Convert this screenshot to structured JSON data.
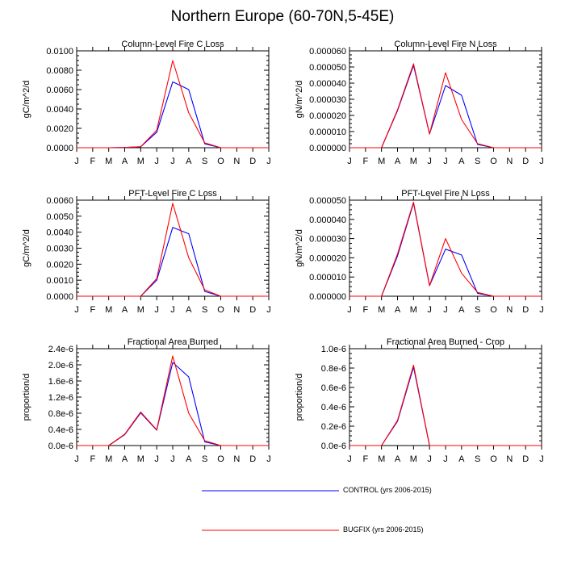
{
  "title": "Northern Europe (60-70N,5-45E)",
  "colors": {
    "control": "#0000ff",
    "bugfix": "#ff0000"
  },
  "legend": [
    {
      "key": "control",
      "label": "CONTROL (yrs 2006-2015)"
    },
    {
      "key": "bugfix",
      "label": "BUGFIX (yrs 2006-2015)"
    }
  ],
  "chart_data": [
    {
      "type": "line",
      "title": "Column-Level Fire C Loss",
      "ylabel": "gC/m^2/d",
      "categories": [
        "J",
        "F",
        "M",
        "A",
        "M",
        "J",
        "J",
        "A",
        "S",
        "O",
        "N",
        "D",
        "J"
      ],
      "ylim": [
        0,
        0.01
      ],
      "yticks": [
        0,
        0.002,
        0.004,
        0.006,
        0.008,
        0.01
      ],
      "ytick_labels": [
        "0.0000",
        "0.0020",
        "0.0040",
        "0.0060",
        "0.0080",
        "0.0100"
      ],
      "series": [
        {
          "name": "CONTROL (yrs 2006-2015)",
          "key": "control",
          "values": [
            0,
            0,
            0,
            3e-05,
            0.0001,
            0.0016,
            0.0068,
            0.006,
            0.0004,
            0,
            0,
            0,
            0
          ]
        },
        {
          "name": "BUGFIX (yrs 2006-2015)",
          "key": "bugfix",
          "values": [
            0,
            0,
            0,
            3e-05,
            0.0001,
            0.0018,
            0.009,
            0.0036,
            0.0005,
            0,
            0,
            0,
            0
          ]
        }
      ]
    },
    {
      "type": "line",
      "title": "Column-Level Fire N Loss",
      "ylabel": "gN/m^2/d",
      "categories": [
        "J",
        "F",
        "M",
        "A",
        "M",
        "J",
        "J",
        "A",
        "S",
        "O",
        "N",
        "D",
        "J"
      ],
      "ylim": [
        0,
        6e-05
      ],
      "yticks": [
        0,
        1e-05,
        2e-05,
        3e-05,
        4e-05,
        5e-05,
        6e-05
      ],
      "ytick_labels": [
        "0.000000",
        "0.000010",
        "0.000020",
        "0.000030",
        "0.000040",
        "0.000050",
        "0.000060"
      ],
      "series": [
        {
          "name": "CONTROL (yrs 2006-2015)",
          "key": "control",
          "values": [
            0,
            0,
            0,
            2.3e-05,
            5.1e-05,
            8.5e-06,
            3.85e-05,
            3.25e-05,
            2e-06,
            0,
            0,
            0,
            0
          ]
        },
        {
          "name": "BUGFIX (yrs 2006-2015)",
          "key": "bugfix",
          "values": [
            0,
            0,
            0,
            2.35e-05,
            5.2e-05,
            8.5e-06,
            4.65e-05,
            1.75e-05,
            2.5e-06,
            0,
            0,
            0,
            0
          ]
        }
      ]
    },
    {
      "type": "line",
      "title": "PFT-Level Fire C Loss",
      "ylabel": "gC/m^2/d",
      "categories": [
        "J",
        "F",
        "M",
        "A",
        "M",
        "J",
        "J",
        "A",
        "S",
        "O",
        "N",
        "D",
        "J"
      ],
      "ylim": [
        0,
        0.006
      ],
      "yticks": [
        0,
        0.001,
        0.002,
        0.003,
        0.004,
        0.005,
        0.006
      ],
      "ytick_labels": [
        "0.0000",
        "0.0010",
        "0.0020",
        "0.0030",
        "0.0040",
        "0.0050",
        "0.0060"
      ],
      "series": [
        {
          "name": "CONTROL (yrs 2006-2015)",
          "key": "control",
          "values": [
            0,
            0,
            0,
            0,
            0,
            0.001,
            0.0043,
            0.0039,
            0.0003,
            0,
            0,
            0,
            0
          ]
        },
        {
          "name": "BUGFIX (yrs 2006-2015)",
          "key": "bugfix",
          "values": [
            0,
            0,
            0,
            0,
            0,
            0.0011,
            0.0058,
            0.0024,
            0.0004,
            0,
            0,
            0,
            0
          ]
        }
      ]
    },
    {
      "type": "line",
      "title": "PFT-Level Fire N Loss",
      "ylabel": "gN/m^2/d",
      "categories": [
        "J",
        "F",
        "M",
        "A",
        "M",
        "J",
        "J",
        "A",
        "S",
        "O",
        "N",
        "D",
        "J"
      ],
      "ylim": [
        0,
        5e-05
      ],
      "yticks": [
        0,
        1e-05,
        2e-05,
        3e-05,
        4e-05,
        5e-05
      ],
      "ytick_labels": [
        "0.000000",
        "0.000010",
        "0.000020",
        "0.000030",
        "0.000040",
        "0.000050"
      ],
      "series": [
        {
          "name": "CONTROL (yrs 2006-2015)",
          "key": "control",
          "values": [
            0,
            0,
            0,
            2.1e-05,
            4.85e-05,
            5.5e-06,
            2.45e-05,
            2.15e-05,
            1.5e-06,
            0,
            0,
            0,
            0
          ]
        },
        {
          "name": "BUGFIX (yrs 2006-2015)",
          "key": "bugfix",
          "values": [
            0,
            0,
            0,
            2.2e-05,
            4.9e-05,
            5.5e-06,
            3e-05,
            1.2e-05,
            2e-06,
            0,
            0,
            0,
            0
          ]
        }
      ]
    },
    {
      "type": "line",
      "title": "Fractional Area Burned",
      "ylabel": "proportion/d",
      "categories": [
        "J",
        "F",
        "M",
        "A",
        "M",
        "J",
        "J",
        "A",
        "S",
        "O",
        "N",
        "D",
        "J"
      ],
      "ylim": [
        0,
        2.4e-06
      ],
      "yticks": [
        0,
        4e-07,
        8e-07,
        1.2e-06,
        1.6e-06,
        2e-06,
        2.4e-06
      ],
      "ytick_labels": [
        "0.0e-6",
        "0.4e-6",
        "0.8e-6",
        "1.2e-6",
        "1.6e-6",
        "2.0e-6",
        "2.4e-6"
      ],
      "series": [
        {
          "name": "CONTROL (yrs 2006-2015)",
          "key": "control",
          "values": [
            0,
            0,
            0,
            2.7e-07,
            8.1e-07,
            3.8e-07,
            2.06e-06,
            1.7e-06,
            9e-08,
            0,
            0,
            0,
            0
          ]
        },
        {
          "name": "BUGFIX (yrs 2006-2015)",
          "key": "bugfix",
          "values": [
            0,
            0,
            0,
            2.8e-07,
            8.3e-07,
            3.9e-07,
            2.22e-06,
            8e-07,
            1.2e-07,
            0,
            0,
            0,
            0
          ]
        }
      ]
    },
    {
      "type": "line",
      "title": "Fractional Area Burned - Crop",
      "ylabel": "proportion/d",
      "categories": [
        "J",
        "F",
        "M",
        "A",
        "M",
        "J",
        "J",
        "A",
        "S",
        "O",
        "N",
        "D",
        "J"
      ],
      "ylim": [
        0,
        1e-06
      ],
      "yticks": [
        0,
        2e-07,
        4e-07,
        6e-07,
        8e-07,
        1e-06
      ],
      "ytick_labels": [
        "0.0e-6",
        "0.2e-6",
        "0.4e-6",
        "0.6e-6",
        "0.8e-6",
        "1.0e-6"
      ],
      "series": [
        {
          "name": "CONTROL (yrs 2006-2015)",
          "key": "control",
          "values": [
            0,
            0,
            0,
            2.5e-07,
            8.1e-07,
            0,
            0,
            0,
            0,
            0,
            0,
            0,
            0
          ]
        },
        {
          "name": "BUGFIX (yrs 2006-2015)",
          "key": "bugfix",
          "values": [
            0,
            0,
            0,
            2.6e-07,
            8.3e-07,
            0,
            0,
            0,
            0,
            0,
            0,
            0,
            0
          ]
        }
      ]
    }
  ]
}
